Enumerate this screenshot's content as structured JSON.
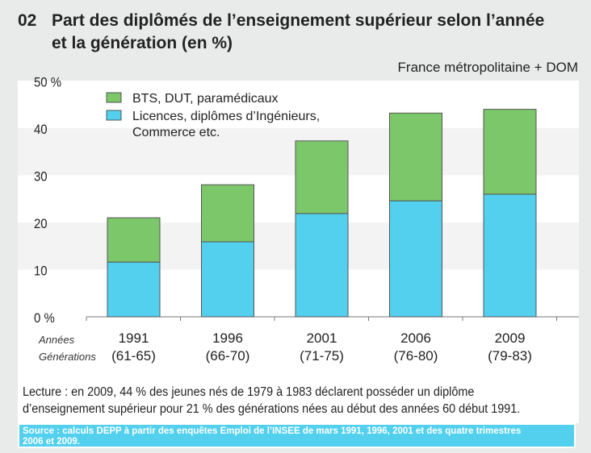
{
  "header": {
    "number": "02",
    "title_line1": "Part des diplômés de l’enseignement supérieur selon l’année",
    "title_line2": "et la génération (en %)",
    "subtitle": "France métropolitaine + DOM"
  },
  "chart_data": {
    "type": "bar",
    "stacked": true,
    "categories": [
      "1991",
      "1996",
      "2001",
      "2006",
      "2009"
    ],
    "subcategories": [
      "(61-65)",
      "(66-70)",
      "(71-75)",
      "(76-80)",
      "(79-83)"
    ],
    "row_labels": [
      "Années",
      "Générations"
    ],
    "series": [
      {
        "name": "Licences, diplômes d’Ingénieurs, Commerce etc.",
        "name_line1": "Licences, diplômes d’Ingénieurs,",
        "name_line2": "Commerce etc.",
        "values": [
          11.6,
          15.9,
          21.9,
          24.6,
          26.0
        ],
        "color": "#52d0ee"
      },
      {
        "name": "BTS, DUT, paramédicaux",
        "values": [
          9.4,
          12.1,
          15.4,
          18.6,
          18.0
        ],
        "color": "#7bc76a"
      }
    ],
    "ylim": [
      0,
      50
    ],
    "yticks": [
      "0 %",
      "10",
      "20",
      "30",
      "40",
      "50 %"
    ],
    "grid": "alternating bands",
    "legend": "top-left"
  },
  "lecture": {
    "line1": "Lecture : en 2009, 44 % des jeunes nés de 1979 à 1983 déclarent posséder un diplôme",
    "line2": "d’enseignement supérieur pour 21 % des générations nées au début des années 60 début 1991."
  },
  "source": {
    "line1": "Source : calculs DEPP à partir des enquêtes Emploi de l’INSEE de mars 1991, 1996, 2001 et des quatre trimestres",
    "line2": "2006 et 2009."
  }
}
